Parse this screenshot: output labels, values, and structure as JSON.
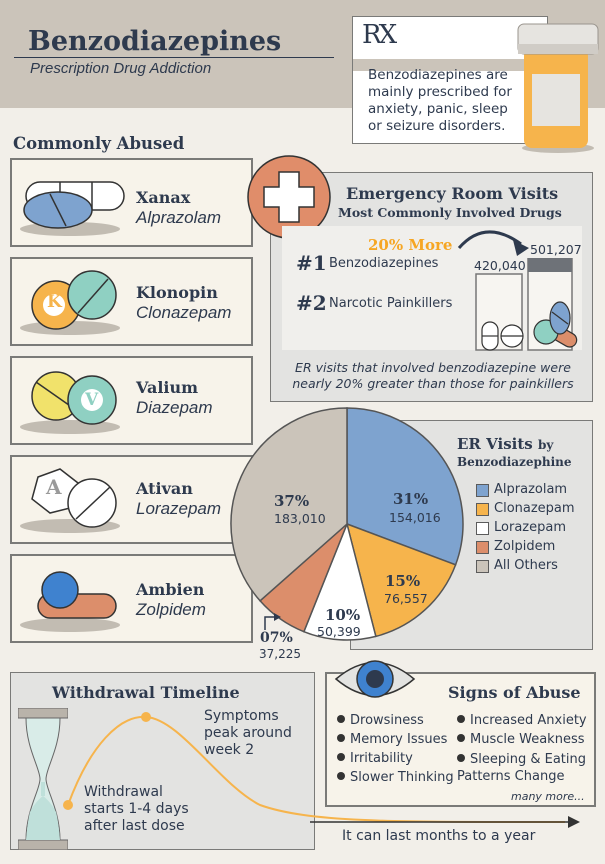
{
  "header": {
    "title": "Benzodiazepines",
    "subtitle": "Prescription Drug Addiction",
    "rx_symbol": "RX",
    "rx_note": "Benzodiazepines are mainly prescribed for anxiety, panic, sleep or seizure disorders."
  },
  "commonly_abused": {
    "heading": "Commonly Abused",
    "drugs": [
      {
        "name": "Xanax",
        "generic": "Alprazolam"
      },
      {
        "name": "Klonopin",
        "generic": "Clonazepam",
        "pill_letter": "K"
      },
      {
        "name": "Valium",
        "generic": "Diazepam",
        "pill_letter": "V"
      },
      {
        "name": "Ativan",
        "generic": "Lorazepam",
        "pill_letter": "A"
      },
      {
        "name": "Ambien",
        "generic": "Zolpidem"
      }
    ]
  },
  "er_visits": {
    "title": "Emergency Room Visits",
    "subtitle": "Most Commonly Involved Drugs",
    "rank1_num": "#1",
    "rank1_label": "Benzodiazepines",
    "rank2_num": "#2",
    "rank2_label": "Narcotic Painkillers",
    "more_label": "20% More",
    "value_painkillers": "420,040",
    "value_benzo": "501,207",
    "note": "ER visits that involved benzodiazepine were nearly 20% greater than those for painkillers"
  },
  "pie": {
    "title_line1": "ER Visits",
    "title_by": "by",
    "title_line2": "Benzodiazephine"
  },
  "chart_data": {
    "type": "pie",
    "slices": [
      {
        "name": "Alprazolam",
        "percent": "31%",
        "value": 154016,
        "value_label": "154,016",
        "color": "#7ea3cf"
      },
      {
        "name": "Clonazepam",
        "percent": "15%",
        "value": 76557,
        "value_label": "76,557",
        "color": "#f6b44c"
      },
      {
        "name": "Lorazepam",
        "percent": "10%",
        "value": 50399,
        "value_label": "50,399",
        "color": "#ffffff"
      },
      {
        "name": "Zolpidem",
        "percent": "07%",
        "value": 37225,
        "value_label": "37,225",
        "color": "#dc8e6b"
      },
      {
        "name": "All Others",
        "percent": "37%",
        "value": 183010,
        "value_label": "183,010",
        "color": "#cbc4ba"
      }
    ]
  },
  "withdrawal": {
    "title": "Withdrawal Timeline",
    "peak_text": "Symptoms peak around week 2",
    "start_text": "Withdrawal starts 1-4 days after last dose",
    "end_text": "It can last months to a year"
  },
  "signs": {
    "title": "Signs of Abuse",
    "left": [
      "Drowsiness",
      "Memory Issues",
      "Irritability",
      "Slower Thinking"
    ],
    "right": [
      "Increased Anxiety",
      "Muscle Weakness",
      "Sleeping & Eating Patterns Change"
    ],
    "more": "many more..."
  },
  "colors": {
    "navy": "#2e3a4e",
    "accent_orange": "#f6a623",
    "cross_orange": "#e08d6a",
    "blue": "#7ea3cf",
    "teal": "#8fd0c2",
    "yellow": "#f1e26b"
  }
}
